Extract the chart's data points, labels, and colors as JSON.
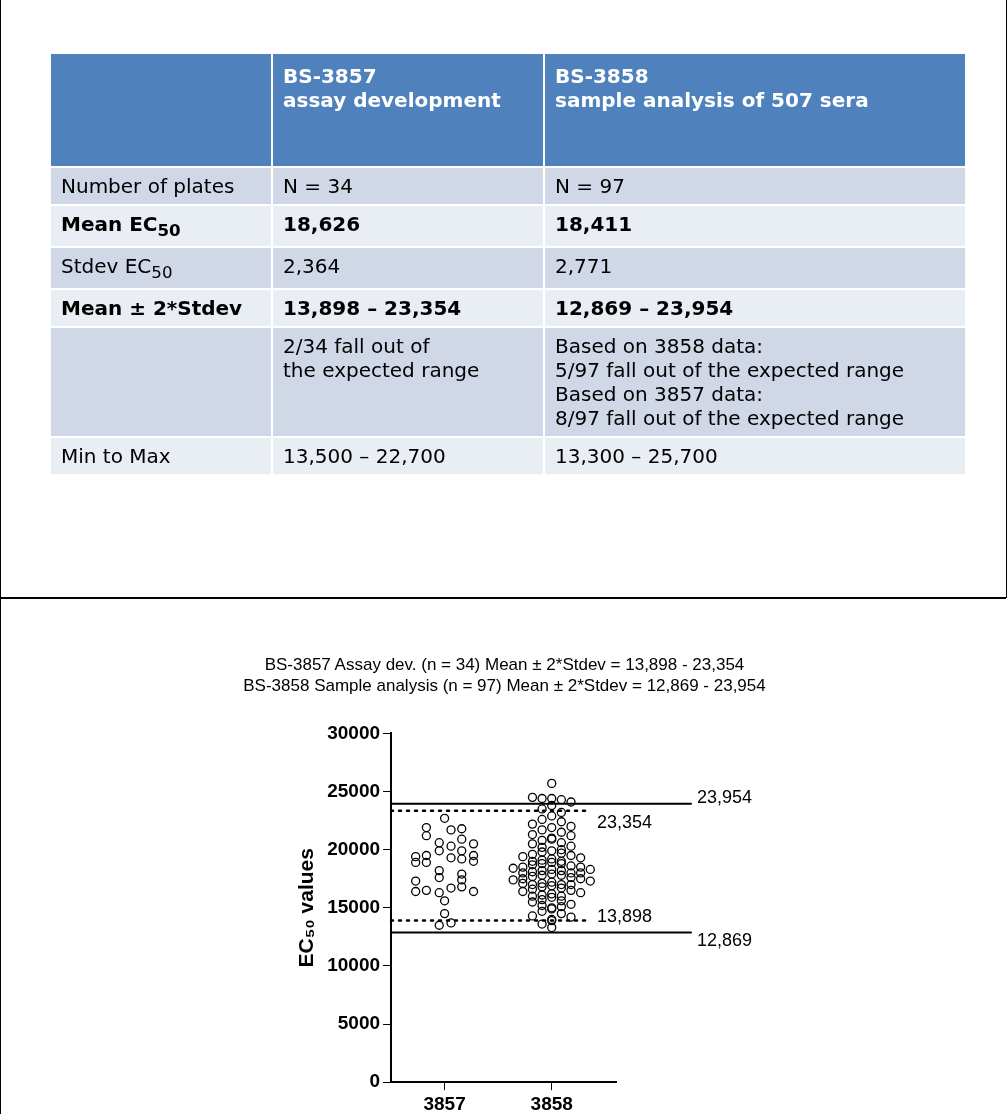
{
  "chart_data": [
    {
      "type": "other",
      "categories": [
        null,
        "BS-3857\nassay development",
        "BS-3858\nsample analysis of 507 sera"
      ],
      "y_categories": [
        "Number of plates",
        "Mean EC$_{50}$",
        "Stdev EC$_{50}$",
        "Mean ± 2*Stdev",
        null,
        "Min to Max"
      ],
      "cell_labels": [
        [
          "N = 34",
          "N = 97"
        ],
        [
          "18,626",
          "18,411"
        ],
        [
          "2,364",
          "2,771"
        ],
        [
          "13,898 – 23,354",
          "12,869 – 23,954"
        ],
        [
          "2/34 fall out of\nthe expected range",
          "Based on 3858 data:\n5/97 fall out of the expected range\nBased on 3857 data:\n8/97 fall out of the expected range"
        ],
        [
          "13,500 – 22,700",
          "13,300 – 25,700"
        ]
      ]
    },
    {
      "type": "scatter",
      "title": "BS-3857 Assay dev.  (n = 34) Mean ± 2*Stdev = 13,898 - 23,354",
      "subtitle": "BS-3858 Sample analysis (n = 97) Mean ± 2*Stdev = 12,869 - 23,954",
      "ylabel": "EC₅₀ values",
      "xlim": [
        3856.5,
        3858.6
      ],
      "xticks": [
        3857,
        3858
      ],
      "ylim": [
        0,
        30000
      ],
      "yticks": [
        0,
        5000,
        10000,
        15000,
        20000,
        25000,
        30000
      ],
      "grid": false,
      "legend": false,
      "marker": "circle",
      "series": [
        {
          "color": "#000000",
          "x": [
            3857,
            3856.83,
            3856.83,
            3857.06,
            3857.16,
            3857.16,
            3856.95,
            3856.95,
            3857.06,
            3857.16,
            3857.27,
            3857.27,
            3856.73,
            3856.73,
            3856.83,
            3856.83,
            3857.06,
            3857.16,
            3857.27,
            3856.95,
            3856.95,
            3857.16,
            3857.16,
            3856.73,
            3856.73,
            3856.83,
            3856.95,
            3857.06,
            3857.16,
            3857.27,
            3857,
            3857,
            3857.06,
            3856.95
          ],
          "values": [
            22700,
            21900,
            21200,
            21700,
            21800,
            20900,
            20600,
            19900,
            20300,
            19900,
            20500,
            19500,
            19400,
            18900,
            19500,
            18900,
            19300,
            19200,
            19000,
            18200,
            17600,
            17900,
            17400,
            17300,
            16400,
            16500,
            16300,
            16700,
            16800,
            16400,
            15600,
            14500,
            13700,
            13500
          ]
        },
        {
          "color": "#000000",
          "x": [
            3858,
            3858,
            3857.91,
            3858.09,
            3857.82,
            3858.18,
            3858,
            3857.91,
            3858.09,
            3858,
            3857.91,
            3858.09,
            3857.82,
            3858.18,
            3858,
            3857.91,
            3858.09,
            3857.82,
            3858.18,
            3858,
            3858,
            3857.91,
            3858.09,
            3857.82,
            3858.18,
            3857.91,
            3858.09,
            3858,
            3857.91,
            3858.09,
            3857.82,
            3858.18,
            3857.73,
            3858.27,
            3858,
            3857.91,
            3858.09,
            3857.82,
            3858,
            3857.91,
            3858.09,
            3857.82,
            3858.18,
            3857.73,
            3858.27,
            3857.64,
            3858.36,
            3858,
            3857.91,
            3858.09,
            3857.82,
            3858.18,
            3857.73,
            3858.27,
            3858,
            3857.91,
            3858.09,
            3857.82,
            3858.18,
            3857.73,
            3858.27,
            3857.64,
            3858.36,
            3858,
            3857.91,
            3858.09,
            3857.82,
            3858.18,
            3857.73,
            3858,
            3857.91,
            3858.09,
            3857.82,
            3858.18,
            3857.73,
            3858.27,
            3858,
            3857.91,
            3858.09,
            3857.82,
            3858,
            3857.91,
            3858.09,
            3857.82,
            3858.18,
            3857.91,
            3858.09,
            3858,
            3858,
            3857.91,
            3858.09,
            3857.82,
            3858.18,
            3858,
            3858,
            3857.91,
            3858
          ],
          "values": [
            25700,
            24400,
            24400,
            24300,
            24500,
            24100,
            23800,
            23500,
            23200,
            22900,
            22600,
            22400,
            22200,
            22000,
            21900,
            21700,
            21500,
            21300,
            21200,
            21000,
            20900,
            20800,
            20600,
            20500,
            20300,
            20200,
            20000,
            19900,
            19800,
            19700,
            19600,
            19500,
            19400,
            19300,
            19200,
            19100,
            19000,
            19000,
            18900,
            18800,
            18800,
            18700,
            18600,
            18500,
            18500,
            18400,
            18300,
            18300,
            18200,
            18200,
            18100,
            18000,
            18000,
            18000,
            17900,
            17800,
            17800,
            17700,
            17600,
            17500,
            17500,
            17400,
            17300,
            17200,
            17100,
            17000,
            17000,
            17000,
            17100,
            16900,
            16800,
            16700,
            16600,
            16500,
            16400,
            16300,
            16200,
            16100,
            16000,
            16000,
            15900,
            15700,
            15600,
            15500,
            15300,
            15200,
            15100,
            15000,
            14900,
            14700,
            14500,
            14300,
            14200,
            14000,
            13900,
            13600,
            13300
          ]
        }
      ],
      "ref_lines": [
        {
          "axis": "y",
          "value": 23954,
          "label": "23,954",
          "line_style": "solid"
        },
        {
          "axis": "y",
          "value": 12869,
          "label": "12,869",
          "line_style": "solid"
        },
        {
          "axis": "y",
          "value": 23354,
          "label": "23,354",
          "line_style": "dotted"
        },
        {
          "axis": "y",
          "value": 13898,
          "label": "13,898",
          "line_style": "dotted"
        }
      ]
    }
  ]
}
